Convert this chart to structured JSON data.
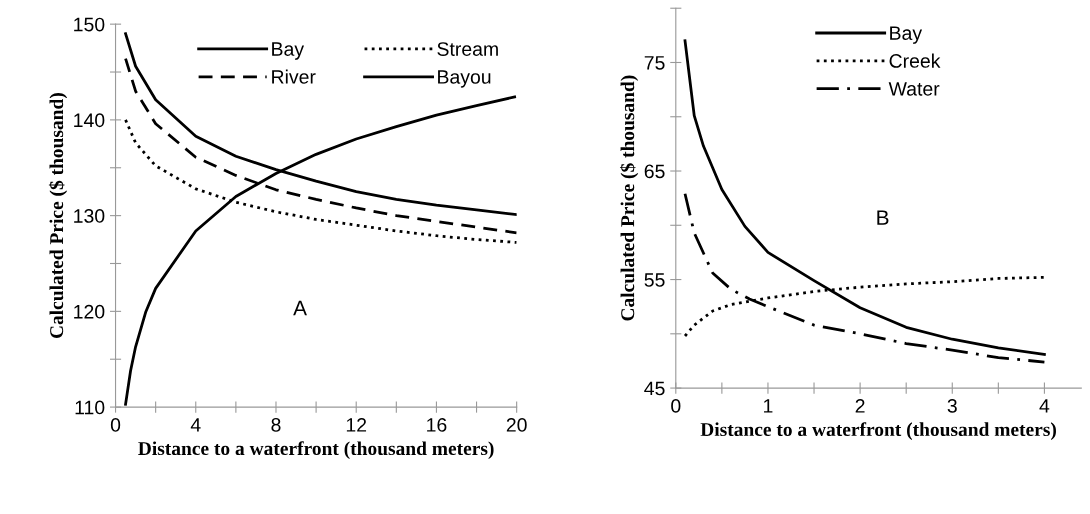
{
  "chart_data": [
    {
      "type": "line",
      "xlabel": "Distance to a waterfront (thousand meters)",
      "ylabel": "Calculated Price ($ thousand)",
      "annotations": [
        "A"
      ],
      "xlim": [
        0,
        20
      ],
      "xticks": [
        0,
        {
          "value": 2,
          "label": null
        },
        4,
        {
          "value": 6,
          "label": null
        },
        8,
        {
          "value": 10,
          "label": null
        },
        12,
        {
          "value": 14,
          "label": null
        },
        16,
        {
          "value": 18,
          "label": null
        },
        20
      ],
      "ylim": [
        110,
        150
      ],
      "yticks": [
        110,
        {
          "value": 115,
          "label": null
        },
        120,
        {
          "value": 125,
          "label": null
        },
        130,
        {
          "value": 135,
          "label": null
        },
        140,
        {
          "value": 145,
          "label": null
        },
        150
      ],
      "grid": false,
      "legend": "top right",
      "marker": "none",
      "series": [
        {
          "name": "Bay",
          "color": "#000000",
          "line_style": "solid",
          "x": [
            0.5,
            1,
            2,
            4,
            6,
            8,
            10,
            12,
            14,
            16,
            18,
            20
          ],
          "values": [
            149,
            145.6,
            142.1,
            138.3,
            136.2,
            134.8,
            133.6,
            132.5,
            131.7,
            131.1,
            130.6,
            130.1
          ]
        },
        {
          "name": "River",
          "color": "#000000",
          "line_style": "dashed",
          "x": [
            0.5,
            1,
            2,
            4,
            6,
            8,
            10,
            12,
            14,
            16,
            18,
            20
          ],
          "values": [
            146.4,
            143,
            139.6,
            136.1,
            134.2,
            132.7,
            131.7,
            130.8,
            130,
            129.4,
            128.8,
            128.2
          ]
        },
        {
          "name": "Stream",
          "color": "#000000",
          "line_style": "dotted",
          "x": [
            0.5,
            1,
            2,
            4,
            6,
            8,
            10,
            12,
            14,
            16,
            18,
            20
          ],
          "values": [
            140,
            137.6,
            135.2,
            132.8,
            131.4,
            130.4,
            129.6,
            129,
            128.4,
            127.9,
            127.5,
            127.2
          ]
        },
        {
          "name": "Bayou",
          "color": "#000000",
          "line_style": "solid",
          "x": [
            0.5,
            0.75,
            1,
            1.5,
            2,
            4,
            6,
            8,
            10,
            12,
            14,
            16,
            18,
            19.9
          ],
          "values": [
            110.3,
            113.8,
            116.3,
            119.9,
            122.4,
            128.4,
            132,
            134.4,
            136.4,
            138,
            139.3,
            140.5,
            141.5,
            142.4
          ]
        }
      ]
    },
    {
      "type": "line",
      "xlabel": "Distance to a waterfront (thousand meters)",
      "ylabel": "Calculated Price ($ thousand)",
      "annotations": [
        "B"
      ],
      "xlim": [
        0,
        4.4
      ],
      "xticks": [
        0,
        {
          "value": 0.5,
          "label": null
        },
        1,
        {
          "value": 1.5,
          "label": null
        },
        2,
        {
          "value": 2.5,
          "label": null
        },
        3,
        {
          "value": 3.5,
          "label": null
        },
        4
      ],
      "ylim": [
        45,
        80
      ],
      "yticks": [
        45,
        {
          "value": 50,
          "label": null
        },
        55,
        {
          "value": 60,
          "label": null
        },
        65,
        {
          "value": 70,
          "label": null
        },
        75,
        {
          "value": 80,
          "label": null
        }
      ],
      "grid": false,
      "legend": "top",
      "marker": "none",
      "series": [
        {
          "name": "Bay",
          "color": "#000000",
          "line_style": "solid",
          "x": [
            0.1,
            0.2,
            0.3,
            0.5,
            0.75,
            1,
            1.5,
            2,
            2.5,
            3,
            3.5,
            4
          ],
          "values": [
            77,
            70.1,
            67.3,
            63.3,
            59.9,
            57.5,
            54.9,
            52.4,
            50.6,
            49.5,
            48.7,
            48.1
          ]
        },
        {
          "name": "Creek",
          "color": "#000000",
          "line_style": "dotted",
          "x": [
            0.1,
            0.2,
            0.4,
            0.6,
            1,
            1.5,
            2,
            2.5,
            3,
            3.5,
            4
          ],
          "values": [
            49.8,
            50.8,
            52.1,
            52.7,
            53.3,
            53.9,
            54.3,
            54.6,
            54.8,
            55.1,
            55.2
          ]
        },
        {
          "name": "Water",
          "color": "#000000",
          "line_style": "dashdot",
          "x": [
            0.1,
            0.2,
            0.4,
            0.6,
            0.8,
            1,
            1.5,
            2,
            2.5,
            3,
            3.5,
            4
          ],
          "values": [
            62.9,
            59.3,
            55.6,
            54.1,
            53.2,
            52.5,
            50.8,
            50,
            49.1,
            48.5,
            47.8,
            47.4
          ]
        }
      ]
    }
  ]
}
